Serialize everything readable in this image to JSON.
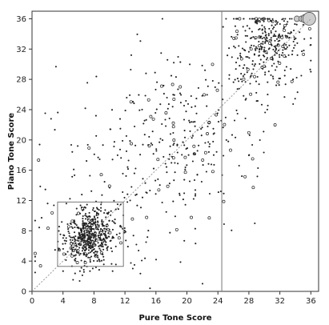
{
  "chart_data": {
    "type": "scatter",
    "title": "",
    "xlabel": "Pure Tone Score",
    "ylabel": "Piano Tone Score",
    "xlim": [
      0,
      37
    ],
    "ylim": [
      0,
      37
    ],
    "xticks": [
      0,
      4,
      8,
      12,
      16,
      20,
      24,
      28,
      32,
      36
    ],
    "yticks": [
      0,
      4,
      8,
      12,
      16,
      20,
      24,
      28,
      32,
      36
    ],
    "grid": false,
    "legend": "none",
    "annotations": {
      "diagonal_line": {
        "from": [
          0,
          0
        ],
        "to": [
          36,
          36
        ],
        "style": "dotted"
      },
      "vertical_line": {
        "x": 24.5
      },
      "box": {
        "x": [
          3.3,
          11.8
        ],
        "y": [
          3.3,
          11.8
        ]
      }
    },
    "highlight_points": [
      {
        "x": 34.2,
        "y": 36,
        "size": "small"
      },
      {
        "x": 34.8,
        "y": 36,
        "size": "small"
      },
      {
        "x": 35.3,
        "y": 36,
        "size": "medium"
      },
      {
        "x": 35.8,
        "y": 36,
        "size": "large"
      }
    ],
    "point_clusters": [
      {
        "cx": 7.2,
        "cy": 7.2,
        "sd": 1.8,
        "n": 520
      },
      {
        "cx": 30.5,
        "cy": 32.5,
        "sd": 2.6,
        "n": 330
      },
      {
        "cx": 20,
        "cy": 21,
        "sd": 5.5,
        "n": 280
      },
      {
        "cx": 12,
        "cy": 13,
        "sd": 6,
        "n": 120
      }
    ],
    "colors": {
      "points": "#222222",
      "lines": "#777777",
      "diagonal": "#999999",
      "large_points_fill": "#cccccc"
    }
  }
}
